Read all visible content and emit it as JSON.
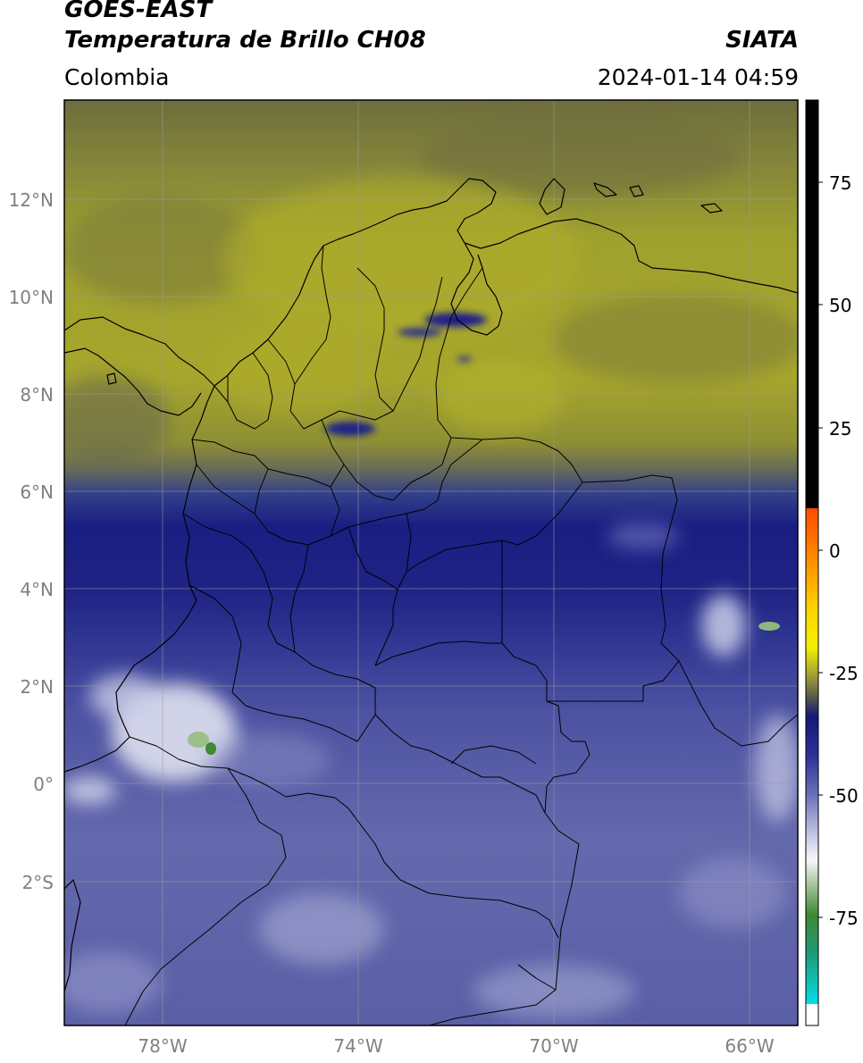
{
  "header": {
    "satellite": "GOES-EAST",
    "product": "Temperatura de Brillo CH08",
    "region": "Colombia",
    "agency": "SIATA",
    "datetime": "2024-01-14 04:59"
  },
  "map": {
    "lat_labels": [
      "12°N",
      "10°N",
      "8°N",
      "6°N",
      "4°N",
      "2°N",
      "0°",
      "2°S"
    ],
    "lon_labels": [
      "78°W",
      "74°W",
      "70°W",
      "66°W"
    ],
    "lat_values": [
      12,
      10,
      8,
      6,
      4,
      2,
      0,
      -2
    ],
    "lon_values": [
      -78,
      -74,
      -70,
      -66
    ],
    "extent": {
      "lon": [
        -80,
        -65
      ],
      "lat": [
        -4.2,
        14.6
      ]
    }
  },
  "colorbar": {
    "ticks": [
      "75",
      "50",
      "25",
      "0",
      "-25",
      "-50",
      "-75"
    ],
    "tick_values": [
      75,
      50,
      25,
      0,
      -25,
      -50,
      -75
    ],
    "range": [
      -97,
      90
    ]
  },
  "colors": {
    "warm_band": "#9ea02f",
    "mid_band": "#3d3e8c",
    "cold_band": "#5a5fa8",
    "deep_blue": "#1b1e88",
    "cloud_white": "#e8eaf4",
    "coast_line": "#000000"
  }
}
